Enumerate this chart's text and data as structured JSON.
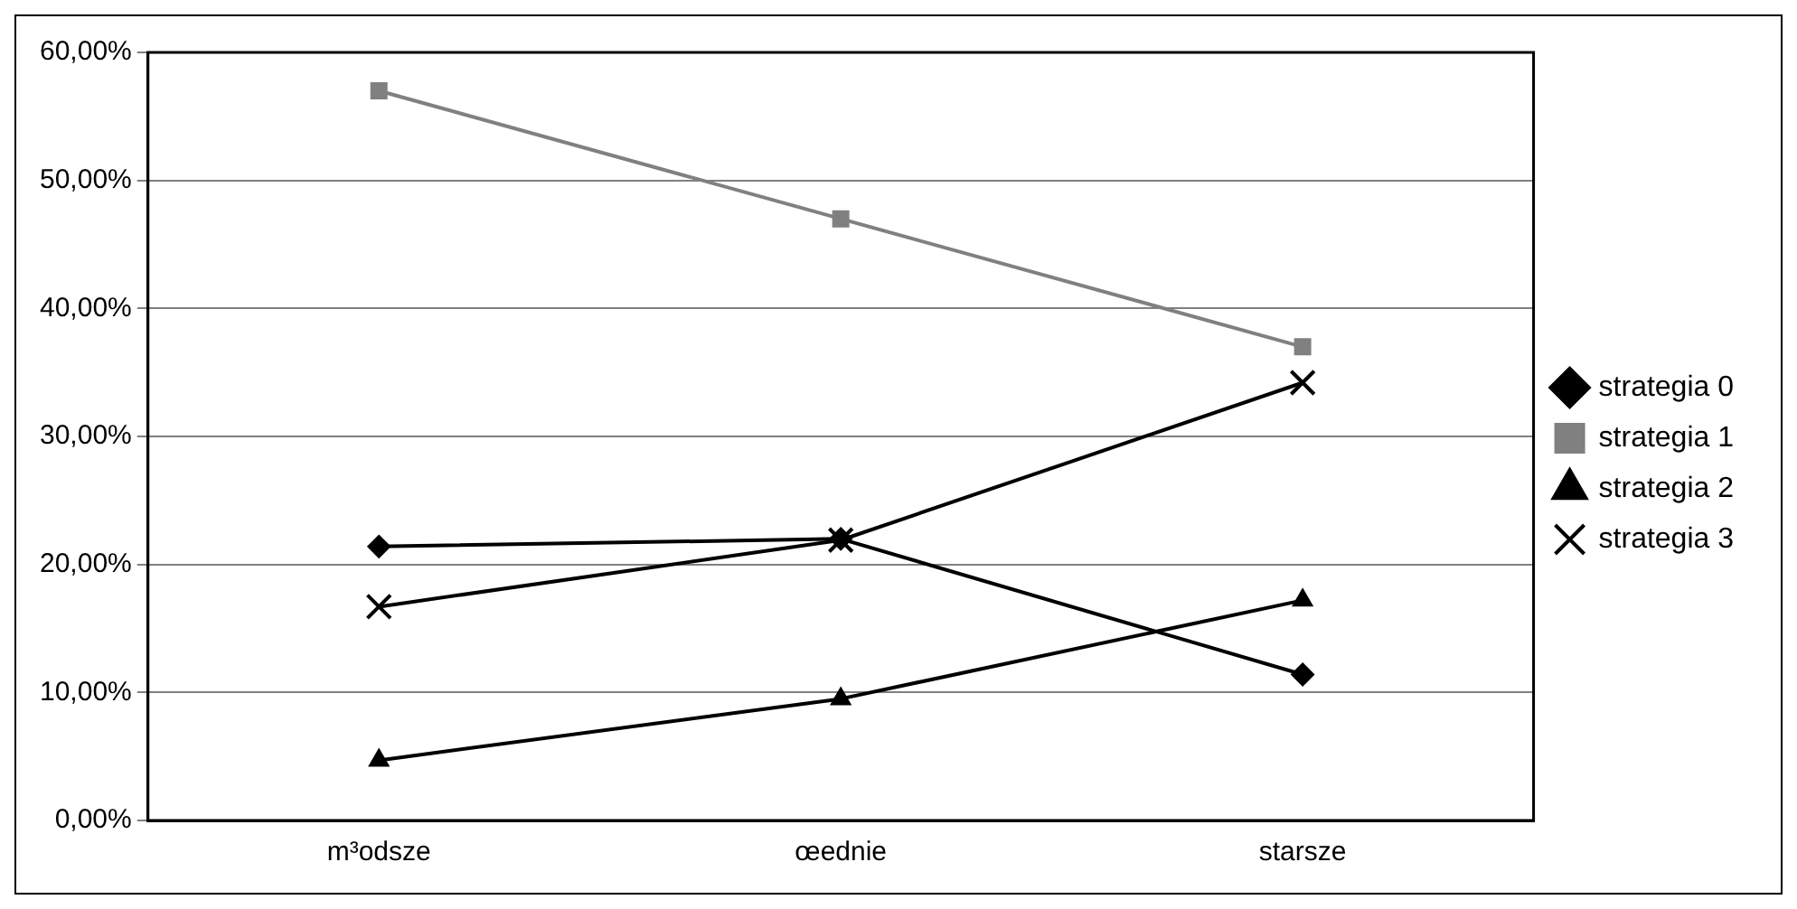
{
  "chart_data": {
    "type": "line",
    "categories": [
      "m³odsze",
      "œednie",
      "starsze"
    ],
    "series": [
      {
        "name": "strategia 0",
        "color": "#000000",
        "marker": "diamond",
        "values": [
          21.4,
          22,
          11.4
        ]
      },
      {
        "name": "strategia 1",
        "color": "#808080",
        "marker": "square",
        "values": [
          57,
          47,
          37
        ]
      },
      {
        "name": "strategia 2",
        "color": "#000000",
        "marker": "triangle",
        "values": [
          4.7,
          9.5,
          17.2
        ]
      },
      {
        "name": "strategia 3",
        "color": "#000000",
        "marker": "cross",
        "values": [
          16.7,
          21.9,
          34.2
        ]
      }
    ],
    "ylim": [
      0,
      60
    ],
    "yticks": [
      {
        "value": 0,
        "label": "0,00%"
      },
      {
        "value": 10,
        "label": "10,00%"
      },
      {
        "value": 20,
        "label": "20,00%"
      },
      {
        "value": 30,
        "label": "30,00%"
      },
      {
        "value": 40,
        "label": "40,00%"
      },
      {
        "value": 50,
        "label": "50,00%"
      },
      {
        "value": 60,
        "label": "60,00%"
      }
    ],
    "grid": "y",
    "legend": "right",
    "line_style": "solid"
  }
}
